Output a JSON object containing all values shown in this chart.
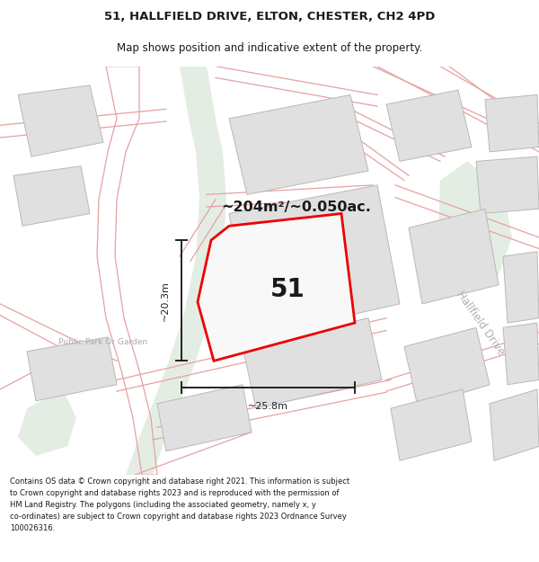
{
  "title_line1": "51, HALLFIELD DRIVE, ELTON, CHESTER, CH2 4PD",
  "title_line2": "Map shows position and indicative extent of the property.",
  "footer_text": "Contains OS data © Crown copyright and database right 2021. This information is subject to Crown copyright and database rights 2023 and is reproduced with the permission of HM Land Registry. The polygons (including the associated geometry, namely x, y co-ordinates) are subject to Crown copyright and database rights 2023 Ordnance Survey 100026316.",
  "area_label": "~204m²/~0.050ac.",
  "width_label": "~25.8m",
  "height_label": "~20.3m",
  "plot_number": "51",
  "park_label": "Public Park Or Garden",
  "road_label": "Hallfield Drive",
  "background_color": "#ffffff",
  "building_color": "#e0e0e0",
  "building_edge": "#b8b8b8",
  "light_green": "#e4ede4",
  "pink_road": "#e8a0a0",
  "red_plot_color": "#ee0000",
  "dim_line_color": "#222222",
  "text_color": "#1a1a1a",
  "road_text_color": "#b0b0b0",
  "park_text_color": "#aaaaaa"
}
